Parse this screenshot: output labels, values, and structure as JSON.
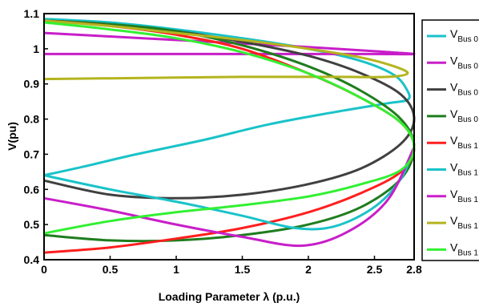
{
  "chart_data": {
    "type": "line",
    "xlabel": "Loading Parameter λ (p.u.)",
    "ylabel": "V(pu)",
    "xlim": [
      0,
      2.8
    ],
    "ylim": [
      0.4,
      1.1
    ],
    "xticks": [
      "0",
      "0.5",
      "1",
      "1.5",
      "2",
      "2.5",
      "2.8"
    ],
    "yticks": [
      "0.4",
      "0.5",
      "0.6",
      "0.7",
      "0.8",
      "0.9",
      "1",
      "1.1"
    ],
    "grid": false,
    "legend_position": "right (outside plot, clipped)",
    "series": [
      {
        "name": "V_Bus 0",
        "legend_main": "V",
        "legend_sub": "Bus 0",
        "color": "#19c3c8",
        "x": [
          0,
          0.5,
          1,
          1.5,
          2,
          2.4,
          2.65,
          2.75,
          2.75,
          2.6,
          2.2,
          1.7,
          1.2,
          0.7,
          0.3,
          0
        ],
        "y": [
          1.085,
          1.075,
          1.055,
          1.03,
          1.0,
          0.965,
          0.925,
          0.88,
          0.855,
          0.845,
          0.82,
          0.785,
          0.74,
          0.7,
          0.665,
          0.64
        ]
      },
      {
        "name": "V_Bus 0",
        "legend_main": "V",
        "legend_sub": "Bus 0",
        "color": "#c81ec8",
        "x": [
          0,
          0.5,
          1,
          1.5,
          2,
          2.5,
          2.8,
          2.5,
          2,
          1,
          0
        ],
        "y": [
          1.045,
          1.035,
          1.025,
          1.015,
          1.005,
          0.993,
          0.985,
          0.985,
          0.985,
          0.985,
          0.985
        ]
      },
      {
        "name": "V_Bus 0",
        "legend_main": "V",
        "legend_sub": "Bus 0",
        "color": "#404040",
        "x": [
          0,
          0.5,
          1,
          1.5,
          2,
          2.4,
          2.7,
          2.8,
          2.7,
          2.4,
          2,
          1.5,
          1,
          0.5,
          0
        ],
        "y": [
          1.08,
          1.07,
          1.05,
          1.02,
          0.98,
          0.93,
          0.87,
          0.8,
          0.73,
          0.66,
          0.615,
          0.585,
          0.575,
          0.585,
          0.625
        ]
      },
      {
        "name": "V_Bus 0",
        "legend_main": "V",
        "legend_sub": "Bus 0",
        "color": "#1e7d1e",
        "x": [
          0,
          0.5,
          1,
          1.5,
          2,
          2.4,
          2.7,
          2.8,
          2.7,
          2.4,
          2,
          1.5,
          1,
          0.5,
          0
        ],
        "y": [
          1.08,
          1.07,
          1.05,
          1.01,
          0.95,
          0.88,
          0.8,
          0.72,
          0.63,
          0.55,
          0.5,
          0.47,
          0.455,
          0.455,
          0.47
        ]
      },
      {
        "name": "V_Bus 1",
        "legend_main": "V",
        "legend_sub": "Bus 1",
        "color": "#ff1e1e",
        "x": [
          0,
          0.5,
          1,
          1.5,
          2,
          2.4,
          2.7,
          2.8,
          2.7,
          2.4,
          2,
          1.5,
          1,
          0.5,
          0
        ],
        "y": [
          1.08,
          1.065,
          1.04,
          1.0,
          0.93,
          0.86,
          0.79,
          0.72,
          0.65,
          0.59,
          0.535,
          0.49,
          0.46,
          0.435,
          0.42
        ]
      },
      {
        "name": "V_Bus 1",
        "legend_main": "V",
        "legend_sub": "Bus 1",
        "color": "#19c3c8",
        "x": [
          0,
          0.5,
          1,
          1.5,
          1.9,
          2.2,
          2.5,
          2.7,
          2.8
        ],
        "y": [
          0.64,
          0.6,
          0.565,
          0.525,
          0.49,
          0.495,
          0.55,
          0.63,
          0.72
        ]
      },
      {
        "name": "V_Bus 1",
        "legend_main": "V",
        "legend_sub": "Bus 1",
        "color": "#c81ec8",
        "x": [
          0,
          0.5,
          1,
          1.5,
          1.95,
          2.3,
          2.6,
          2.8
        ],
        "y": [
          0.575,
          0.54,
          0.5,
          0.465,
          0.44,
          0.48,
          0.57,
          0.72
        ]
      },
      {
        "name": "V_Bus 1",
        "legend_main": "V",
        "legend_sub": "Bus 1",
        "color": "#b4b41e",
        "x": [
          0,
          0.5,
          1,
          1.5,
          2,
          2.4,
          2.65,
          2.75,
          2.6,
          2.2,
          1.5,
          1,
          0.5,
          0
        ],
        "y": [
          1.08,
          1.065,
          1.045,
          1.025,
          1.0,
          0.975,
          0.95,
          0.93,
          0.92,
          0.92,
          0.92,
          0.918,
          0.916,
          0.914
        ]
      },
      {
        "name": "V_Bus 1",
        "legend_main": "V",
        "legend_sub": "Bus 1",
        "color": "#32f032",
        "x": [
          0,
          0.5,
          1,
          1.5,
          2,
          2.4,
          2.7,
          2.8,
          2.7,
          2.4,
          2,
          1.5,
          1,
          0.5,
          0
        ],
        "y": [
          1.075,
          1.055,
          1.03,
          0.99,
          0.93,
          0.86,
          0.79,
          0.72,
          0.655,
          0.615,
          0.58,
          0.555,
          0.535,
          0.51,
          0.475
        ]
      }
    ]
  }
}
